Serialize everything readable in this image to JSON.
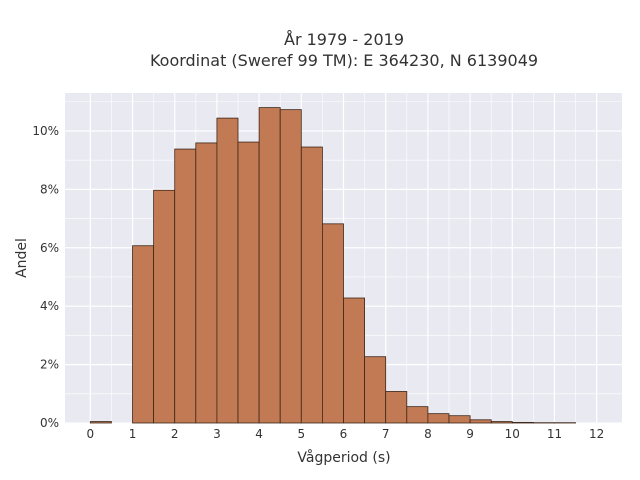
{
  "chart_data": {
    "type": "bar",
    "title_line1": "År 1979 - 2019",
    "title_line2": "Koordinat (Sweref 99 TM): E 364230, N 6139049",
    "xlabel": "Vågperiod (s)",
    "ylabel": "Andel",
    "xlim": [
      -0.6,
      12.6
    ],
    "ylim": [
      0,
      0.113
    ],
    "bin_width": 0.5,
    "x_ticks": [
      0,
      1,
      2,
      3,
      4,
      5,
      6,
      7,
      8,
      9,
      10,
      11,
      12
    ],
    "x_tick_labels": [
      "0",
      "1",
      "2",
      "3",
      "4",
      "5",
      "6",
      "7",
      "8",
      "9",
      "10",
      "11",
      "12"
    ],
    "y_ticks": [
      0,
      0.02,
      0.04,
      0.06,
      0.08,
      0.1
    ],
    "y_tick_labels": [
      "0%",
      "2%",
      "4%",
      "6%",
      "8%",
      "10%"
    ],
    "grid": true,
    "bins": [
      {
        "x0": 0.0,
        "value": 0.0005
      },
      {
        "x0": 1.0,
        "value": 0.0607
      },
      {
        "x0": 1.5,
        "value": 0.0797
      },
      {
        "x0": 2.0,
        "value": 0.0938
      },
      {
        "x0": 2.5,
        "value": 0.0959
      },
      {
        "x0": 3.0,
        "value": 0.1044
      },
      {
        "x0": 3.5,
        "value": 0.0962
      },
      {
        "x0": 4.0,
        "value": 0.108
      },
      {
        "x0": 4.5,
        "value": 0.1073
      },
      {
        "x0": 5.0,
        "value": 0.0945
      },
      {
        "x0": 5.5,
        "value": 0.0682
      },
      {
        "x0": 6.0,
        "value": 0.0428
      },
      {
        "x0": 6.5,
        "value": 0.0227
      },
      {
        "x0": 7.0,
        "value": 0.0108
      },
      {
        "x0": 7.5,
        "value": 0.0056
      },
      {
        "x0": 8.0,
        "value": 0.0032
      },
      {
        "x0": 8.5,
        "value": 0.0025
      },
      {
        "x0": 9.0,
        "value": 0.0011
      },
      {
        "x0": 9.5,
        "value": 0.0005
      },
      {
        "x0": 10.0,
        "value": 0.0002
      },
      {
        "x0": 10.5,
        "value": 0.0001
      },
      {
        "x0": 11.0,
        "value": 0.0001
      }
    ],
    "colors": {
      "bar_fill": "#c17a54",
      "bar_stroke": "#3d2618",
      "plot_bg": "#e9e9f1",
      "grid": "#ffffff"
    }
  }
}
